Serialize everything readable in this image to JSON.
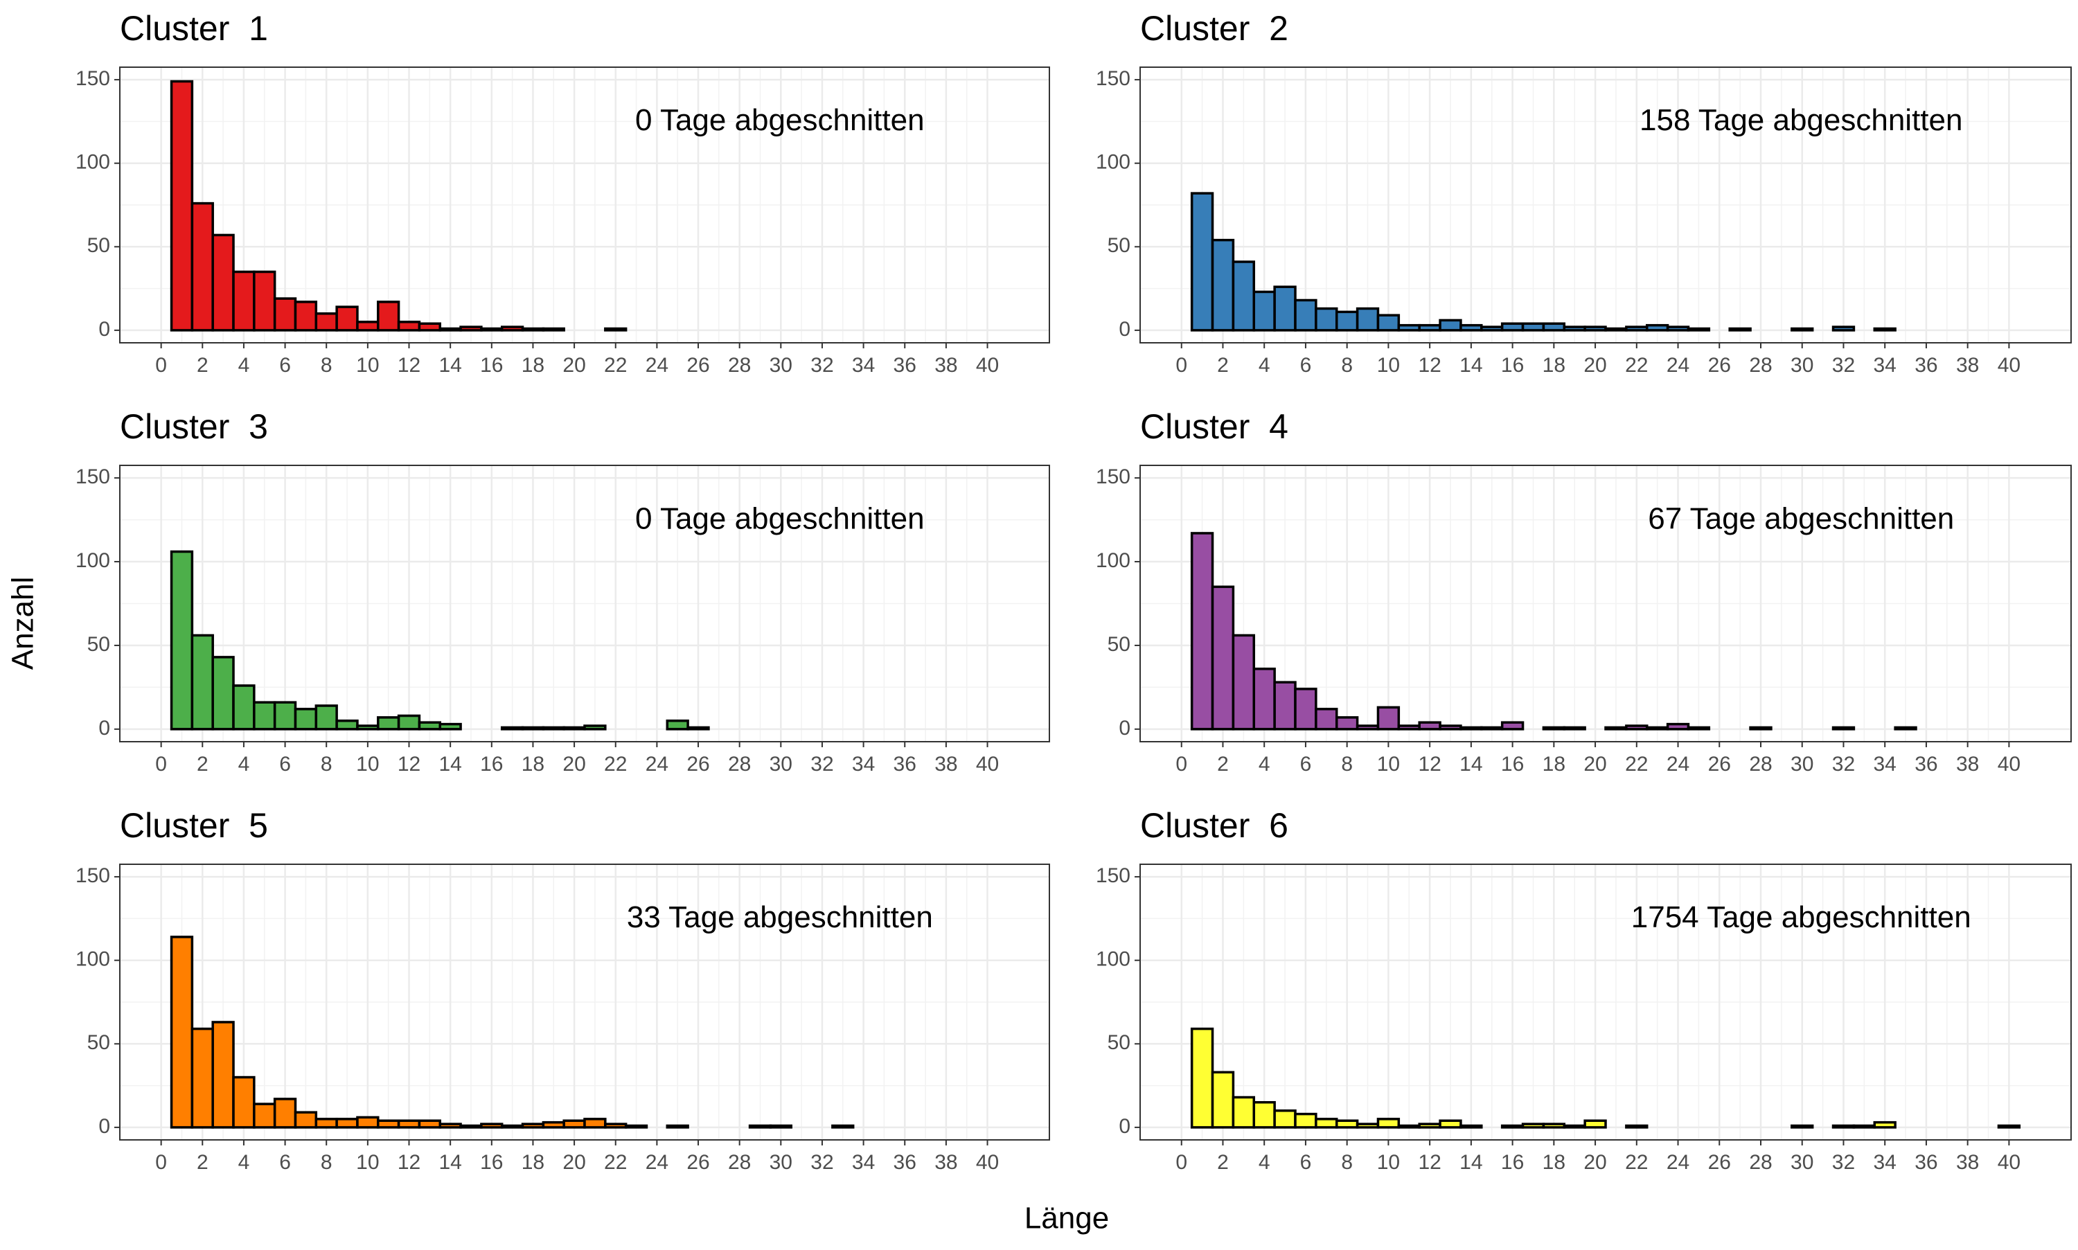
{
  "xlabel": "Länge",
  "ylabel": "Anzahl",
  "chart_data": [
    {
      "type": "histogram",
      "title": "Cluster  1",
      "annotation": "0 Tage abgeschnitten",
      "color": "#E41A1C",
      "bins": [
        0.5,
        1.5,
        2.5,
        3.5,
        4.5,
        5.5,
        6.5,
        7.5,
        8.5,
        9.5,
        10.5,
        11.5,
        12.5,
        13.5,
        14.5,
        15.5,
        16.5,
        17.5,
        18.5,
        19.5,
        20.5,
        21.5,
        22.5,
        23.5,
        24.5,
        25.5,
        26.5,
        27.5,
        28.5,
        29.5,
        30.5,
        31.5,
        32.5,
        33.5,
        34.5,
        35.5,
        36.5,
        37.5,
        38.5,
        39.5,
        40.5
      ],
      "values": [
        149,
        76,
        57,
        35,
        35,
        19,
        17,
        10,
        14,
        5,
        17,
        5,
        4,
        1,
        2,
        1,
        2,
        1,
        1,
        0,
        0,
        1,
        0,
        0,
        0,
        0,
        0,
        0,
        0,
        0,
        0,
        0,
        0,
        0,
        0,
        0,
        0,
        0,
        0,
        0
      ],
      "xlim": [
        -2,
        43
      ],
      "xticks": [
        0,
        2,
        4,
        6,
        8,
        10,
        12,
        14,
        16,
        18,
        20,
        22,
        24,
        26,
        28,
        30,
        32,
        34,
        36,
        38,
        40
      ],
      "ylim": [
        -7.5,
        157.5
      ],
      "yticks": [
        0,
        50,
        100,
        150
      ],
      "grid": true
    },
    {
      "type": "histogram",
      "title": "Cluster  2",
      "annotation": "158 Tage abgeschnitten",
      "color": "#377EB8",
      "bins": [
        0.5,
        1.5,
        2.5,
        3.5,
        4.5,
        5.5,
        6.5,
        7.5,
        8.5,
        9.5,
        10.5,
        11.5,
        12.5,
        13.5,
        14.5,
        15.5,
        16.5,
        17.5,
        18.5,
        19.5,
        20.5,
        21.5,
        22.5,
        23.5,
        24.5,
        25.5,
        26.5,
        27.5,
        28.5,
        29.5,
        30.5,
        31.5,
        32.5,
        33.5,
        34.5,
        35.5,
        36.5,
        37.5,
        38.5,
        39.5,
        40.5
      ],
      "values": [
        82,
        54,
        41,
        23,
        26,
        18,
        13,
        11,
        13,
        9,
        3,
        3,
        6,
        3,
        2,
        4,
        4,
        4,
        2,
        2,
        1,
        2,
        3,
        2,
        1,
        0,
        1,
        0,
        0,
        1,
        0,
        2,
        0,
        1,
        0,
        0,
        0,
        0,
        0,
        0
      ],
      "xlim": [
        -2,
        43
      ],
      "xticks": [
        0,
        2,
        4,
        6,
        8,
        10,
        12,
        14,
        16,
        18,
        20,
        22,
        24,
        26,
        28,
        30,
        32,
        34,
        36,
        38,
        40
      ],
      "ylim": [
        -7.5,
        157.5
      ],
      "yticks": [
        0,
        50,
        100,
        150
      ],
      "grid": true
    },
    {
      "type": "histogram",
      "title": "Cluster  3",
      "annotation": "0 Tage abgeschnitten",
      "color": "#4DAF4A",
      "bins": [
        0.5,
        1.5,
        2.5,
        3.5,
        4.5,
        5.5,
        6.5,
        7.5,
        8.5,
        9.5,
        10.5,
        11.5,
        12.5,
        13.5,
        14.5,
        15.5,
        16.5,
        17.5,
        18.5,
        19.5,
        20.5,
        21.5,
        22.5,
        23.5,
        24.5,
        25.5,
        26.5,
        27.5,
        28.5,
        29.5,
        30.5,
        31.5,
        32.5,
        33.5,
        34.5,
        35.5,
        36.5,
        37.5,
        38.5,
        39.5,
        40.5
      ],
      "values": [
        106,
        56,
        43,
        26,
        16,
        16,
        12,
        14,
        5,
        2,
        7,
        8,
        4,
        3,
        0,
        0,
        1,
        1,
        1,
        1,
        2,
        0,
        0,
        0,
        5,
        1,
        0,
        0,
        0,
        0,
        0,
        0,
        0,
        0,
        0,
        0,
        0,
        0,
        0,
        0
      ],
      "xlim": [
        -2,
        43
      ],
      "xticks": [
        0,
        2,
        4,
        6,
        8,
        10,
        12,
        14,
        16,
        18,
        20,
        22,
        24,
        26,
        28,
        30,
        32,
        34,
        36,
        38,
        40
      ],
      "ylim": [
        -7.5,
        157.5
      ],
      "yticks": [
        0,
        50,
        100,
        150
      ],
      "grid": true
    },
    {
      "type": "histogram",
      "title": "Cluster  4",
      "annotation": "67 Tage abgeschnitten",
      "color": "#984EA3",
      "bins": [
        0.5,
        1.5,
        2.5,
        3.5,
        4.5,
        5.5,
        6.5,
        7.5,
        8.5,
        9.5,
        10.5,
        11.5,
        12.5,
        13.5,
        14.5,
        15.5,
        16.5,
        17.5,
        18.5,
        19.5,
        20.5,
        21.5,
        22.5,
        23.5,
        24.5,
        25.5,
        26.5,
        27.5,
        28.5,
        29.5,
        30.5,
        31.5,
        32.5,
        33.5,
        34.5,
        35.5,
        36.5,
        37.5,
        38.5,
        39.5,
        40.5
      ],
      "values": [
        117,
        85,
        56,
        36,
        28,
        24,
        12,
        7,
        2,
        13,
        2,
        4,
        2,
        1,
        1,
        4,
        0,
        1,
        1,
        0,
        1,
        2,
        1,
        3,
        1,
        0,
        0,
        1,
        0,
        0,
        0,
        1,
        0,
        0,
        1,
        0,
        0,
        0,
        0,
        0
      ],
      "xlim": [
        -2,
        43
      ],
      "xticks": [
        0,
        2,
        4,
        6,
        8,
        10,
        12,
        14,
        16,
        18,
        20,
        22,
        24,
        26,
        28,
        30,
        32,
        34,
        36,
        38,
        40
      ],
      "ylim": [
        -7.5,
        157.5
      ],
      "yticks": [
        0,
        50,
        100,
        150
      ],
      "grid": true
    },
    {
      "type": "histogram",
      "title": "Cluster  5",
      "annotation": "33 Tage abgeschnitten",
      "color": "#FF7F00",
      "bins": [
        0.5,
        1.5,
        2.5,
        3.5,
        4.5,
        5.5,
        6.5,
        7.5,
        8.5,
        9.5,
        10.5,
        11.5,
        12.5,
        13.5,
        14.5,
        15.5,
        16.5,
        17.5,
        18.5,
        19.5,
        20.5,
        21.5,
        22.5,
        23.5,
        24.5,
        25.5,
        26.5,
        27.5,
        28.5,
        29.5,
        30.5,
        31.5,
        32.5,
        33.5,
        34.5,
        35.5,
        36.5,
        37.5,
        38.5,
        39.5,
        40.5
      ],
      "values": [
        114,
        59,
        63,
        30,
        14,
        17,
        9,
        5,
        5,
        6,
        4,
        4,
        4,
        2,
        1,
        2,
        1,
        2,
        3,
        4,
        5,
        2,
        1,
        0,
        1,
        0,
        0,
        0,
        1,
        1,
        0,
        0,
        1,
        0,
        0,
        0,
        0,
        0,
        0,
        0
      ],
      "xlim": [
        -2,
        43
      ],
      "xticks": [
        0,
        2,
        4,
        6,
        8,
        10,
        12,
        14,
        16,
        18,
        20,
        22,
        24,
        26,
        28,
        30,
        32,
        34,
        36,
        38,
        40
      ],
      "ylim": [
        -7.5,
        157.5
      ],
      "yticks": [
        0,
        50,
        100,
        150
      ],
      "grid": true
    },
    {
      "type": "histogram",
      "title": "Cluster  6",
      "annotation": "1754 Tage abgeschnitten",
      "color": "#FFFF33",
      "bins": [
        0.5,
        1.5,
        2.5,
        3.5,
        4.5,
        5.5,
        6.5,
        7.5,
        8.5,
        9.5,
        10.5,
        11.5,
        12.5,
        13.5,
        14.5,
        15.5,
        16.5,
        17.5,
        18.5,
        19.5,
        20.5,
        21.5,
        22.5,
        23.5,
        24.5,
        25.5,
        26.5,
        27.5,
        28.5,
        29.5,
        30.5,
        31.5,
        32.5,
        33.5,
        34.5,
        35.5,
        36.5,
        37.5,
        38.5,
        39.5,
        40.5
      ],
      "values": [
        59,
        33,
        18,
        15,
        10,
        8,
        5,
        4,
        2,
        5,
        1,
        2,
        4,
        1,
        0,
        1,
        2,
        2,
        1,
        4,
        0,
        1,
        0,
        0,
        0,
        0,
        0,
        0,
        0,
        1,
        0,
        1,
        1,
        3,
        0,
        0,
        0,
        0,
        0,
        1
      ],
      "xlim": [
        -2,
        43
      ],
      "xticks": [
        0,
        2,
        4,
        6,
        8,
        10,
        12,
        14,
        16,
        18,
        20,
        22,
        24,
        26,
        28,
        30,
        32,
        34,
        36,
        38,
        40
      ],
      "ylim": [
        -7.5,
        157.5
      ],
      "yticks": [
        0,
        50,
        100,
        150
      ],
      "grid": true
    }
  ]
}
